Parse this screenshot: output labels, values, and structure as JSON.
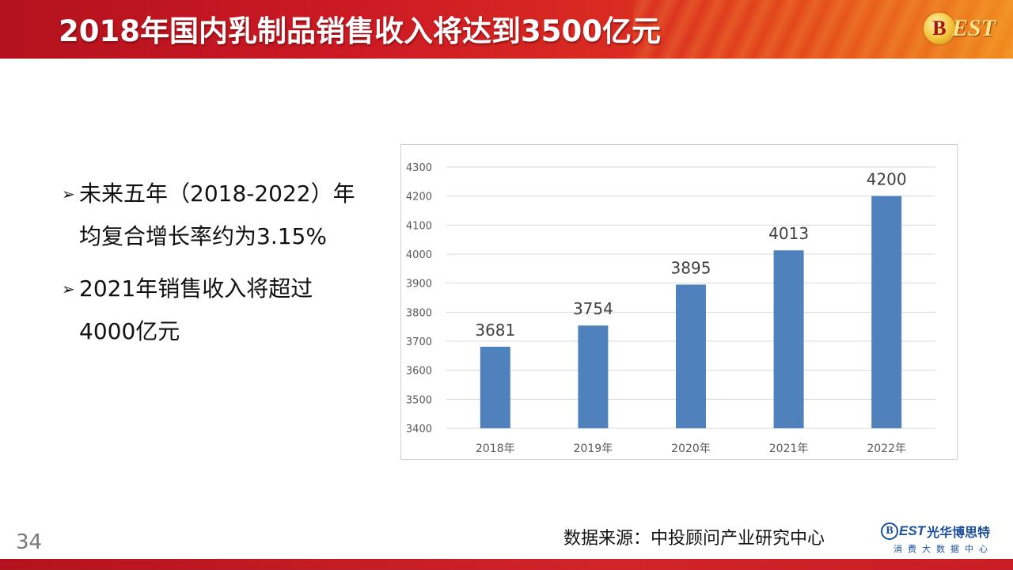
{
  "header": {
    "title": "2018年国内乳制品销售收入将达到3500亿元",
    "logo_letter": "B",
    "logo_text": "EST"
  },
  "bullets": [
    {
      "line1": "未来五年（2018-2022）年",
      "line2": "均复合增长率约为3.15%"
    },
    {
      "line1": "2021年销售收入将超过",
      "line2": "4000亿元"
    }
  ],
  "chart_data": {
    "type": "bar",
    "title": "",
    "xlabel": "",
    "ylabel": "",
    "categories": [
      "2018年",
      "2019年",
      "2020年",
      "2021年",
      "2022年"
    ],
    "values": [
      3681,
      3754,
      3895,
      4013,
      4200
    ],
    "ylim": [
      3400,
      4300
    ],
    "yticks": [
      3400,
      3500,
      3600,
      3700,
      3800,
      3900,
      4000,
      4100,
      4200,
      4300
    ],
    "grid": true,
    "legend": "none",
    "bar_color": "#4f81bd"
  },
  "footer": {
    "page_number": "34",
    "source": "数据来源：中投顾问产业研究中心",
    "logo_letter": "B",
    "logo_en": "EST",
    "logo_cn": "光华博思特",
    "logo_sub": "消费大数据中心"
  },
  "colors": {
    "header_red": "#cc1a24",
    "accent_orange": "#f08a1e",
    "bar_blue": "#4f81bd",
    "logo_blue": "#1b4f9a"
  }
}
